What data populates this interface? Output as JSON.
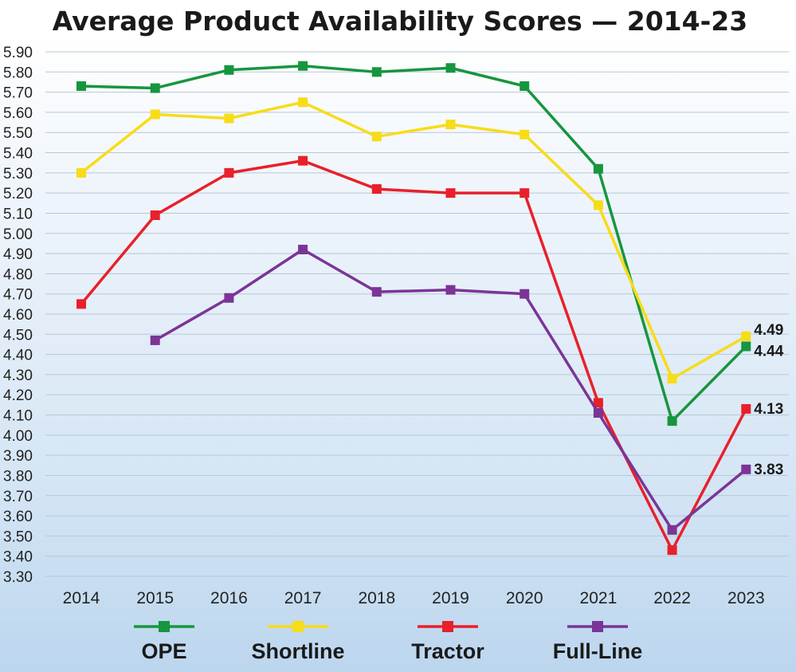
{
  "chart_data": {
    "type": "line",
    "title": "Average Product Availability Scores — 2014-23",
    "xlabel": "",
    "ylabel": "",
    "ylim": [
      3.3,
      5.9
    ],
    "y_ticks": [
      "5.90",
      "5.80",
      "5.70",
      "5.60",
      "5.50",
      "5.40",
      "5.30",
      "5.20",
      "5.10",
      "5.00",
      "4.90",
      "4.80",
      "4.70",
      "4.60",
      "4.50",
      "4.40",
      "4.30",
      "4.20",
      "4.10",
      "4.00",
      "3.90",
      "3.80",
      "3.70",
      "3.60",
      "3.50",
      "3.40",
      "3.30"
    ],
    "categories": [
      "2014",
      "2015",
      "2016",
      "2017",
      "2018",
      "2019",
      "2020",
      "2021",
      "2022",
      "2023"
    ],
    "grid": true,
    "legend_position": "bottom",
    "series": [
      {
        "name": "OPE",
        "color": "#16963e",
        "values": [
          5.73,
          5.72,
          5.81,
          5.83,
          5.8,
          5.82,
          5.73,
          5.32,
          4.07,
          4.44
        ],
        "end_label": "4.44"
      },
      {
        "name": "Shortline",
        "color": "#f7dc18",
        "values": [
          5.3,
          5.59,
          5.57,
          5.65,
          5.48,
          5.54,
          5.49,
          5.14,
          4.28,
          4.49
        ],
        "end_label": "4.49"
      },
      {
        "name": "Tractor",
        "color": "#e8202a",
        "values": [
          4.65,
          5.09,
          5.3,
          5.36,
          5.22,
          5.2,
          5.2,
          4.16,
          3.43,
          4.13
        ],
        "end_label": "4.13"
      },
      {
        "name": "Full-Line",
        "color": "#7a3596",
        "values": [
          null,
          4.47,
          4.68,
          4.92,
          4.71,
          4.72,
          4.7,
          4.11,
          3.53,
          3.83
        ],
        "end_label": "3.83"
      }
    ]
  }
}
